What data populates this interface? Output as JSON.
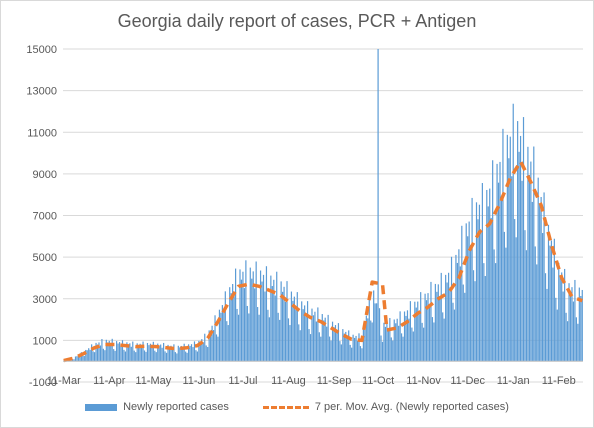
{
  "chart_data": {
    "type": "bar",
    "title": "Georgia daily report of cases, PCR + Antigen",
    "xlabel": "",
    "ylabel": "",
    "ylim": [
      -1000,
      15000
    ],
    "yticks": [
      -1000,
      1000,
      3000,
      5000,
      7000,
      9000,
      11000,
      13000,
      15000
    ],
    "xtick_labels": [
      "11-Mar",
      "11-Apr",
      "11-May",
      "11-Jun",
      "11-Jul",
      "11-Aug",
      "11-Sep",
      "11-Oct",
      "11-Nov",
      "11-Dec",
      "11-Jan",
      "11-Feb"
    ],
    "legend_position": "bottom",
    "grid": "horizontal",
    "colors": {
      "bars": "#5b9bd5",
      "moving_avg": "#ed7d31"
    },
    "series": [
      {
        "name": "Newly reported cases",
        "type": "bar",
        "weekly_points": [
          [
            "11-Mar",
            30
          ],
          [
            "18-Mar",
            150
          ],
          [
            "25-Mar",
            400
          ],
          [
            "01-Apr",
            700
          ],
          [
            "08-Apr",
            850
          ],
          [
            "15-Apr",
            800
          ],
          [
            "22-Apr",
            750
          ],
          [
            "29-Apr",
            700
          ],
          [
            "06-May",
            720
          ],
          [
            "13-May",
            700
          ],
          [
            "20-May",
            650
          ],
          [
            "27-May",
            600
          ],
          [
            "03-Jun",
            650
          ],
          [
            "10-Jun",
            750
          ],
          [
            "17-Jun",
            1100
          ],
          [
            "24-Jun",
            1900
          ],
          [
            "01-Jul",
            2800
          ],
          [
            "08-Jul",
            3600
          ],
          [
            "15-Jul",
            3700
          ],
          [
            "22-Jul",
            3600
          ],
          [
            "29-Jul",
            3400
          ],
          [
            "05-Aug",
            3200
          ],
          [
            "12-Aug",
            2800
          ],
          [
            "19-Aug",
            2400
          ],
          [
            "26-Aug",
            2100
          ],
          [
            "02-Sep",
            1900
          ],
          [
            "09-Sep",
            1600
          ],
          [
            "16-Sep",
            1300
          ],
          [
            "23-Sep",
            1050
          ],
          [
            "30-Sep",
            1000
          ],
          [
            "07-Oct",
            3000
          ],
          [
            "11-Oct",
            15000
          ],
          [
            "14-Oct",
            1500
          ],
          [
            "21-Oct",
            1600
          ],
          [
            "28-Oct",
            1900
          ],
          [
            "04-Nov",
            2300
          ],
          [
            "11-Nov",
            2600
          ],
          [
            "18-Nov",
            3000
          ],
          [
            "25-Nov",
            3300
          ],
          [
            "02-Dec",
            4000
          ],
          [
            "09-Dec",
            5300
          ],
          [
            "16-Dec",
            6200
          ],
          [
            "23-Dec",
            6600
          ],
          [
            "30-Dec",
            7600
          ],
          [
            "06-Jan",
            8800
          ],
          [
            "13-Jan",
            9600
          ],
          [
            "20-Jan",
            8600
          ],
          [
            "27-Jan",
            7500
          ],
          [
            "03-Feb",
            5600
          ],
          [
            "10-Feb",
            4000
          ],
          [
            "17-Feb",
            3100
          ],
          [
            "24-Feb",
            2900
          ]
        ]
      },
      {
        "name": "7 per. Mov. Avg. (Newly reported cases)",
        "type": "line",
        "weekly_points": [
          [
            "11-Mar",
            30
          ],
          [
            "18-Mar",
            150
          ],
          [
            "25-Mar",
            380
          ],
          [
            "01-Apr",
            650
          ],
          [
            "08-Apr",
            800
          ],
          [
            "15-Apr",
            800
          ],
          [
            "22-Apr",
            750
          ],
          [
            "29-Apr",
            700
          ],
          [
            "06-May",
            720
          ],
          [
            "13-May",
            700
          ],
          [
            "20-May",
            650
          ],
          [
            "27-May",
            600
          ],
          [
            "03-Jun",
            650
          ],
          [
            "10-Jun",
            750
          ],
          [
            "17-Jun",
            1100
          ],
          [
            "24-Jun",
            1900
          ],
          [
            "01-Jul",
            2800
          ],
          [
            "08-Jul",
            3600
          ],
          [
            "15-Jul",
            3700
          ],
          [
            "22-Jul",
            3600
          ],
          [
            "29-Jul",
            3400
          ],
          [
            "05-Aug",
            3200
          ],
          [
            "12-Aug",
            2800
          ],
          [
            "19-Aug",
            2400
          ],
          [
            "26-Aug",
            2100
          ],
          [
            "02-Sep",
            1900
          ],
          [
            "09-Sep",
            1600
          ],
          [
            "16-Sep",
            1300
          ],
          [
            "23-Sep",
            1050
          ],
          [
            "30-Sep",
            1000
          ],
          [
            "07-Oct",
            3800
          ],
          [
            "14-Oct",
            3700
          ],
          [
            "17-Oct",
            1500
          ],
          [
            "24-Oct",
            1600
          ],
          [
            "31-Oct",
            1900
          ],
          [
            "07-Nov",
            2300
          ],
          [
            "14-Nov",
            2600
          ],
          [
            "21-Nov",
            3000
          ],
          [
            "28-Nov",
            3300
          ],
          [
            "05-Dec",
            4000
          ],
          [
            "12-Dec",
            5300
          ],
          [
            "19-Dec",
            6200
          ],
          [
            "26-Dec",
            6600
          ],
          [
            "02-Jan",
            7600
          ],
          [
            "09-Jan",
            8800
          ],
          [
            "16-Jan",
            9600
          ],
          [
            "23-Jan",
            8600
          ],
          [
            "30-Jan",
            7500
          ],
          [
            "06-Feb",
            5600
          ],
          [
            "13-Feb",
            4000
          ],
          [
            "20-Feb",
            3100
          ],
          [
            "27-Feb",
            2900
          ]
        ]
      }
    ]
  }
}
